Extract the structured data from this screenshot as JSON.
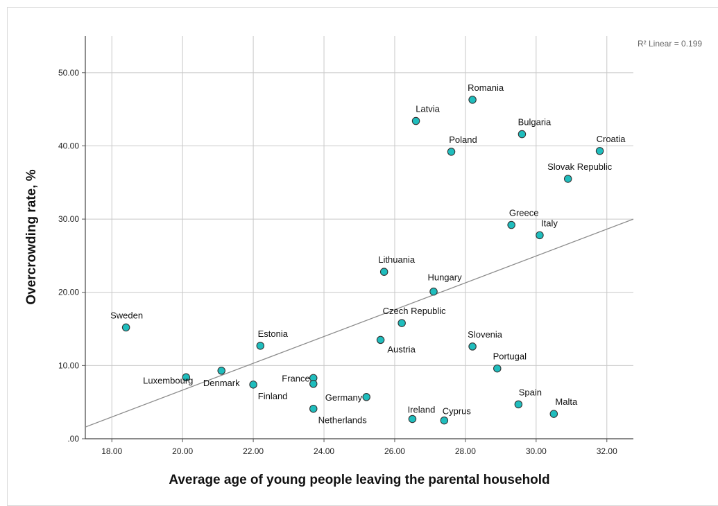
{
  "chart_data": {
    "type": "scatter",
    "xlabel": "Average age of young people leaving the parental household",
    "ylabel": "Overcrowding rate, %",
    "xlim": [
      17.25,
      32.75
    ],
    "ylim": [
      0,
      55
    ],
    "x_ticks": [
      "18.00",
      "20.00",
      "22.00",
      "24.00",
      "26.00",
      "28.00",
      "30.00",
      "32.00"
    ],
    "y_ticks": [
      ".00",
      "10.00",
      "20.00",
      "30.00",
      "40.00",
      "50.00"
    ],
    "grid": true,
    "marker_color": "#1fbdbd",
    "fit_line": {
      "label": "R² Linear = 0.199",
      "x": [
        17.25,
        32.75
      ],
      "y": [
        1.6,
        30.0
      ]
    },
    "points": [
      {
        "name": "Sweden",
        "x": 18.4,
        "y": 15.2
      },
      {
        "name": "Luxembourg",
        "x": 20.1,
        "y": 8.4
      },
      {
        "name": "Denmark",
        "x": 21.1,
        "y": 9.3
      },
      {
        "name": "Finland",
        "x": 22.0,
        "y": 7.4
      },
      {
        "name": "Estonia",
        "x": 22.2,
        "y": 12.7
      },
      {
        "name": "France",
        "x": 23.7,
        "y": 8.3
      },
      {
        "name": "",
        "x": 23.7,
        "y": 7.5
      },
      {
        "name": "Netherlands",
        "x": 23.7,
        "y": 4.1
      },
      {
        "name": "Germany",
        "x": 25.2,
        "y": 5.7
      },
      {
        "name": "Austria",
        "x": 25.6,
        "y": 13.5
      },
      {
        "name": "Lithuania",
        "x": 25.7,
        "y": 22.8
      },
      {
        "name": "Czech Republic",
        "x": 26.2,
        "y": 15.8
      },
      {
        "name": "Latvia",
        "x": 26.6,
        "y": 43.4
      },
      {
        "name": "Ireland",
        "x": 26.5,
        "y": 2.7
      },
      {
        "name": "Hungary",
        "x": 27.1,
        "y": 20.1
      },
      {
        "name": "Cyprus",
        "x": 27.4,
        "y": 2.5
      },
      {
        "name": "Poland",
        "x": 27.6,
        "y": 39.2
      },
      {
        "name": "Romania",
        "x": 28.2,
        "y": 46.3
      },
      {
        "name": "Slovenia",
        "x": 28.2,
        "y": 12.6
      },
      {
        "name": "Portugal",
        "x": 28.9,
        "y": 9.6
      },
      {
        "name": "Greece",
        "x": 29.3,
        "y": 29.2
      },
      {
        "name": "Spain",
        "x": 29.5,
        "y": 4.7
      },
      {
        "name": "Bulgaria",
        "x": 29.6,
        "y": 41.6
      },
      {
        "name": "Italy",
        "x": 30.1,
        "y": 27.8
      },
      {
        "name": "Malta",
        "x": 30.5,
        "y": 3.4
      },
      {
        "name": "Slovak Republic",
        "x": 30.9,
        "y": 35.5
      },
      {
        "name": "Croatia",
        "x": 31.8,
        "y": 39.3
      }
    ]
  }
}
